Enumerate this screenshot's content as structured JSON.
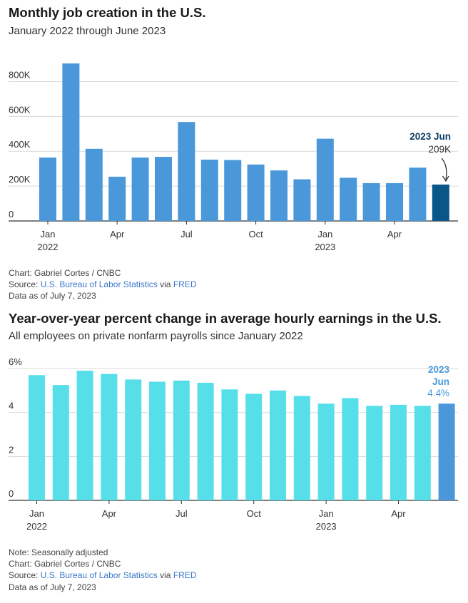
{
  "chart_data": [
    {
      "type": "bar",
      "title": "Monthly job creation in the U.S.",
      "subtitle": "January 2022 through June 2023",
      "categories": [
        "Jan 2022",
        "Feb 2022",
        "Mar 2022",
        "Apr 2022",
        "May 2022",
        "Jun 2022",
        "Jul 2022",
        "Aug 2022",
        "Sep 2022",
        "Oct 2022",
        "Nov 2022",
        "Dec 2022",
        "Jan 2023",
        "Feb 2023",
        "Mar 2023",
        "Apr 2023",
        "May 2023",
        "Jun 2023"
      ],
      "values": [
        364,
        904,
        414,
        254,
        364,
        368,
        568,
        352,
        350,
        324,
        290,
        239,
        472,
        248,
        217,
        217,
        306,
        209
      ],
      "units": "thousands",
      "ylim": [
        0,
        900
      ],
      "yticks": [
        0,
        200,
        400,
        600,
        800
      ],
      "ytick_labels": [
        "0",
        "200K",
        "400K",
        "600K",
        "800K"
      ],
      "xtick_labels": [
        {
          "index": 0,
          "line1": "Jan",
          "line2": "2022"
        },
        {
          "index": 3,
          "line1": "Apr",
          "line2": ""
        },
        {
          "index": 6,
          "line1": "Jul",
          "line2": ""
        },
        {
          "index": 9,
          "line1": "Oct",
          "line2": ""
        },
        {
          "index": 12,
          "line1": "Jan",
          "line2": "2023"
        },
        {
          "index": 15,
          "line1": "Apr",
          "line2": ""
        }
      ],
      "bar_color": "#4a98d9",
      "highlight_color": "#0b5688",
      "highlight_index": 17,
      "annotation": {
        "label": "2023 Jun",
        "value": "209K"
      },
      "grid": true,
      "footer": {
        "credit": "Chart: Gabriel Cortes / CNBC",
        "source_prefix": "Source: ",
        "source_link1": "U.S. Bureau of Labor Statistics",
        "source_via": " via ",
        "source_link2": "FRED",
        "data_as_of": "Data as of July 7, 2023"
      }
    },
    {
      "type": "bar",
      "title": "Year-over-year percent change in average hourly earnings in the U.S.",
      "subtitle": "All employees on private nonfarm payrolls since January 2022",
      "categories": [
        "Jan 2022",
        "Feb 2022",
        "Mar 2022",
        "Apr 2022",
        "May 2022",
        "Jun 2022",
        "Jul 2022",
        "Aug 2022",
        "Sep 2022",
        "Oct 2022",
        "Nov 2022",
        "Dec 2022",
        "Jan 2023",
        "Feb 2023",
        "Mar 2023",
        "Apr 2023",
        "May 2023",
        "Jun 2023"
      ],
      "values": [
        5.7,
        5.25,
        5.9,
        5.75,
        5.5,
        5.4,
        5.45,
        5.35,
        5.05,
        4.85,
        5.0,
        4.75,
        4.4,
        4.65,
        4.3,
        4.35,
        4.3,
        4.4
      ],
      "units": "percent",
      "ylim": [
        0,
        6
      ],
      "yticks": [
        0,
        2,
        4,
        6
      ],
      "ytick_labels": [
        "0",
        "2",
        "4",
        "6%"
      ],
      "xtick_labels": [
        {
          "index": 0,
          "line1": "Jan",
          "line2": "2022"
        },
        {
          "index": 3,
          "line1": "Apr",
          "line2": ""
        },
        {
          "index": 6,
          "line1": "Jul",
          "line2": ""
        },
        {
          "index": 9,
          "line1": "Oct",
          "line2": ""
        },
        {
          "index": 12,
          "line1": "Jan",
          "line2": "2023"
        },
        {
          "index": 15,
          "line1": "Apr",
          "line2": ""
        }
      ],
      "bar_color": "#56dfe9",
      "highlight_color": "#4a98d9",
      "highlight_index": 17,
      "annotation": {
        "label_year": "2023",
        "label_month": "Jun",
        "value": "4.4%"
      },
      "grid": true,
      "footer": {
        "note": "Note: Seasonally adjusted",
        "credit": "Chart: Gabriel Cortes / CNBC",
        "source_prefix": "Source: ",
        "source_link1": "U.S. Bureau of Labor Statistics",
        "source_via": " via ",
        "source_link2": "FRED",
        "data_as_of": "Data as of July 7, 2023"
      }
    }
  ]
}
